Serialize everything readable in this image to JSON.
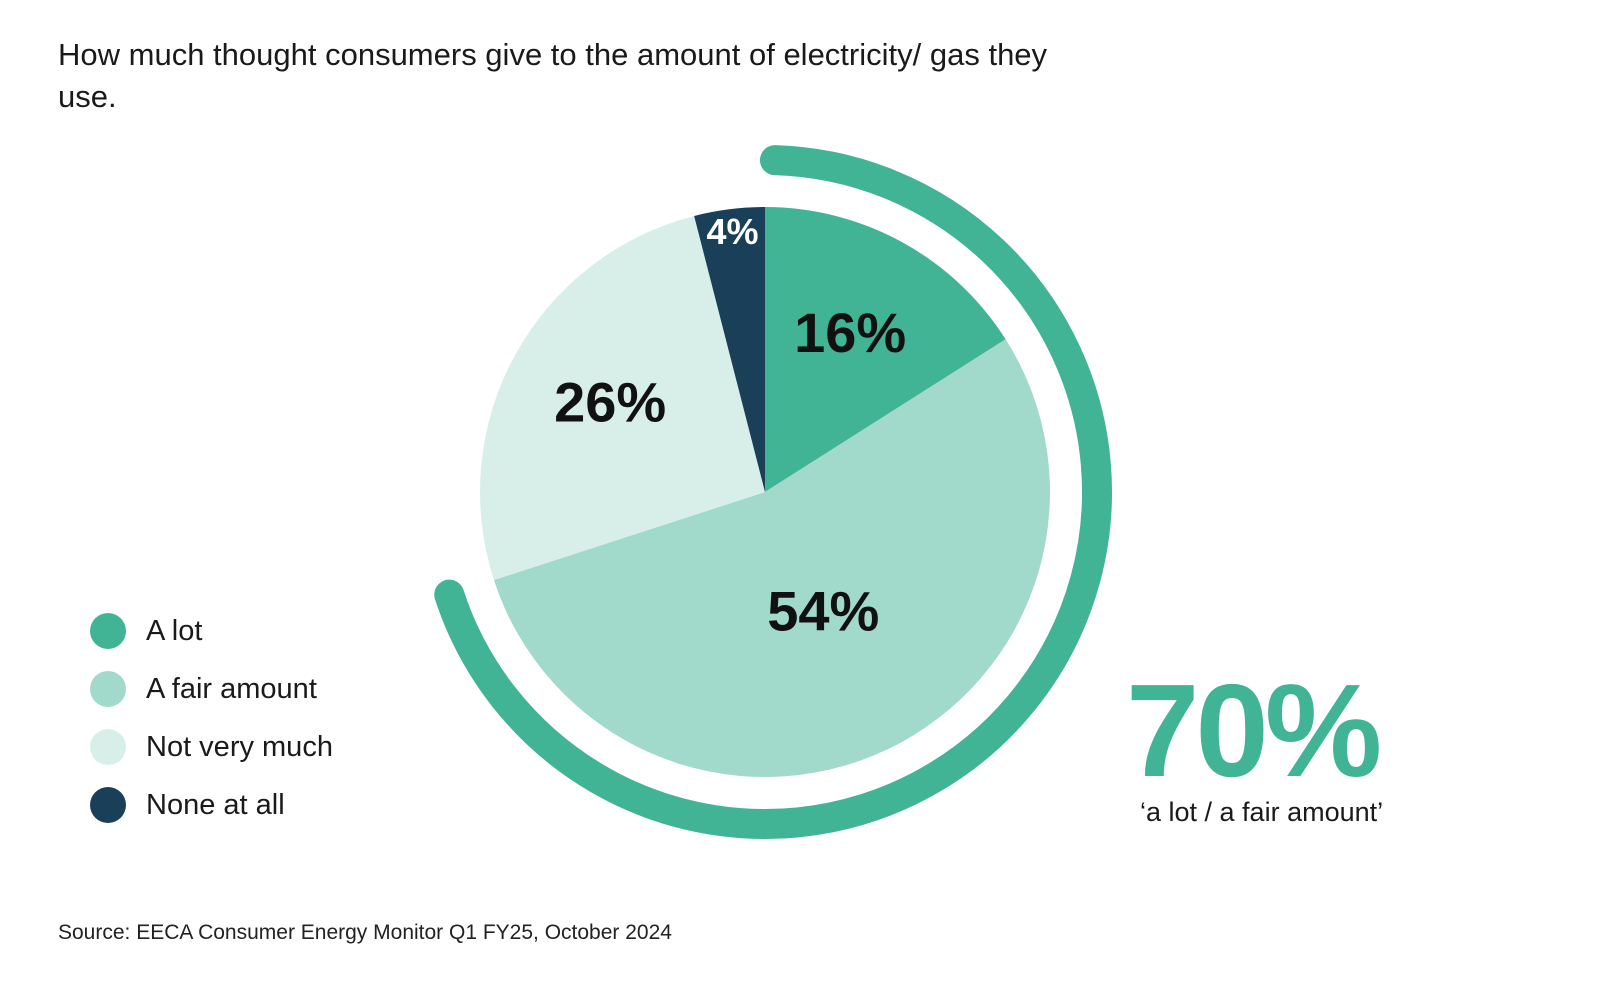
{
  "title": "How much thought consumers give to the amount of electricity/ gas they use.",
  "source": "Source: EECA Consumer Energy Monitor Q1 FY25, October 2024",
  "highlight": {
    "value": "70%",
    "caption": "‘a lot / a fair amount’",
    "color": "#41b496"
  },
  "chart_data": {
    "type": "pie",
    "title": "How much thought consumers give to the amount of electricity/ gas they use.",
    "categories": [
      "A lot",
      "A fair amount",
      "Not very much",
      "None at all"
    ],
    "values": [
      16,
      54,
      26,
      4
    ],
    "labels": [
      "16%",
      "54%",
      "26%",
      "4%"
    ],
    "colors": [
      "#41b496",
      "#a1d9cb",
      "#d8efe9",
      "#1a3f58"
    ],
    "label_colors": [
      "#111111",
      "#111111",
      "#111111",
      "#ffffff"
    ],
    "unit": "%",
    "start": "top, clockwise",
    "legend_position": "left",
    "highlight_arc": {
      "categories": [
        "A lot",
        "A fair amount"
      ],
      "total": 70,
      "color": "#41b496"
    }
  }
}
